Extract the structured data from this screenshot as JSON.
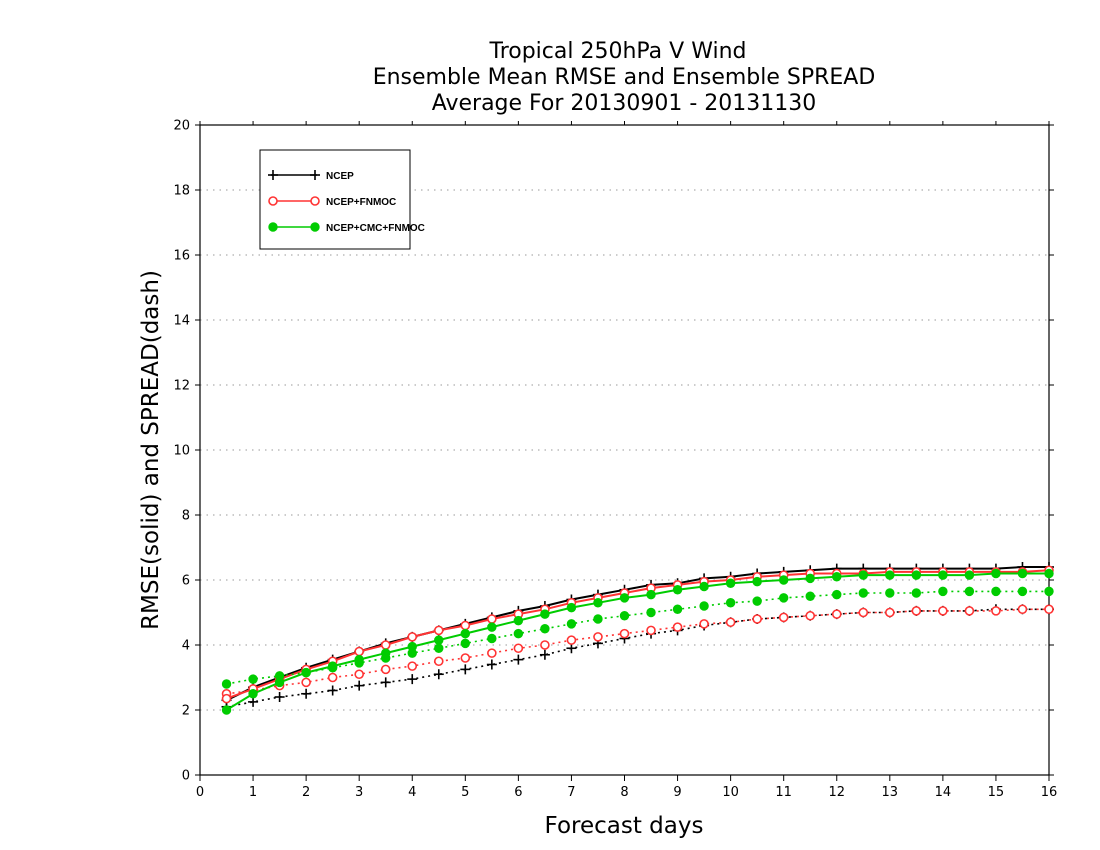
{
  "chart_data": {
    "type": "line",
    "title_lines": [
      "Tropical 250hPa V Wind",
      "Ensemble Mean RMSE and Ensemble SPREAD",
      "Average For 20130901 - 20131130"
    ],
    "xlabel": "Forecast days",
    "ylabel": "RMSE(solid) and SPREAD(dash)",
    "xlim": [
      0,
      16
    ],
    "ylim": [
      0,
      20
    ],
    "xticks": [
      "0",
      "1",
      "2",
      "3",
      "4",
      "5",
      "6",
      "7",
      "8",
      "9",
      "10",
      "11",
      "12",
      "13",
      "14",
      "15",
      "16"
    ],
    "yticks": [
      "0",
      "2",
      "4",
      "6",
      "8",
      "10",
      "12",
      "14",
      "16",
      "18",
      "20"
    ],
    "grid": "horizontal dotted",
    "legend_position": "top-left",
    "x": [
      0.5,
      1,
      1.5,
      2,
      2.5,
      3,
      3.5,
      4,
      4.5,
      5,
      5.5,
      6,
      6.5,
      7,
      7.5,
      8,
      8.5,
      9,
      9.5,
      10,
      10.5,
      11,
      11.5,
      12,
      12.5,
      13,
      13.5,
      14,
      14.5,
      15,
      15.5,
      16
    ],
    "series": [
      {
        "name": "NCEP",
        "color": "#000000",
        "marker": "plus",
        "rmse": [
          2.3,
          2.7,
          3.0,
          3.3,
          3.55,
          3.8,
          4.05,
          4.25,
          4.45,
          4.65,
          4.85,
          5.05,
          5.2,
          5.4,
          5.55,
          5.7,
          5.85,
          5.9,
          6.05,
          6.1,
          6.2,
          6.25,
          6.3,
          6.35,
          6.35,
          6.35,
          6.35,
          6.35,
          6.35,
          6.35,
          6.4,
          6.4
        ],
        "spread": [
          2.1,
          2.25,
          2.4,
          2.5,
          2.6,
          2.75,
          2.85,
          2.95,
          3.1,
          3.25,
          3.4,
          3.55,
          3.7,
          3.9,
          4.05,
          4.2,
          4.35,
          4.45,
          4.6,
          4.7,
          4.8,
          4.85,
          4.9,
          4.95,
          5.0,
          5.0,
          5.05,
          5.05,
          5.05,
          5.1,
          5.1,
          5.1
        ]
      },
      {
        "name": "NCEP+FNMOC",
        "color": "#ff3333",
        "marker": "open-circle",
        "rmse": [
          2.35,
          2.65,
          2.95,
          3.25,
          3.5,
          3.8,
          4.0,
          4.25,
          4.45,
          4.6,
          4.8,
          4.95,
          5.1,
          5.3,
          5.45,
          5.6,
          5.75,
          5.85,
          5.95,
          6.0,
          6.1,
          6.15,
          6.2,
          6.2,
          6.2,
          6.25,
          6.25,
          6.25,
          6.25,
          6.25,
          6.25,
          6.3
        ],
        "spread": [
          2.5,
          2.6,
          2.75,
          2.85,
          3.0,
          3.1,
          3.25,
          3.35,
          3.5,
          3.6,
          3.75,
          3.9,
          4.0,
          4.15,
          4.25,
          4.35,
          4.45,
          4.55,
          4.65,
          4.7,
          4.8,
          4.85,
          4.9,
          4.95,
          5.0,
          5.0,
          5.05,
          5.05,
          5.05,
          5.05,
          5.1,
          5.1
        ]
      },
      {
        "name": "NCEP+CMC+FNMOC",
        "color": "#00cc00",
        "marker": "filled-circle",
        "rmse": [
          2.0,
          2.5,
          2.85,
          3.15,
          3.35,
          3.55,
          3.75,
          3.95,
          4.15,
          4.35,
          4.55,
          4.75,
          4.95,
          5.15,
          5.3,
          5.45,
          5.55,
          5.7,
          5.8,
          5.9,
          5.95,
          6.0,
          6.05,
          6.1,
          6.15,
          6.15,
          6.15,
          6.15,
          6.15,
          6.2,
          6.2,
          6.2
        ],
        "spread": [
          2.8,
          2.95,
          3.05,
          3.15,
          3.3,
          3.45,
          3.6,
          3.75,
          3.9,
          4.05,
          4.2,
          4.35,
          4.5,
          4.65,
          4.8,
          4.9,
          5.0,
          5.1,
          5.2,
          5.3,
          5.35,
          5.45,
          5.5,
          5.55,
          5.6,
          5.6,
          5.6,
          5.65,
          5.65,
          5.65,
          5.65,
          5.65
        ]
      }
    ]
  }
}
